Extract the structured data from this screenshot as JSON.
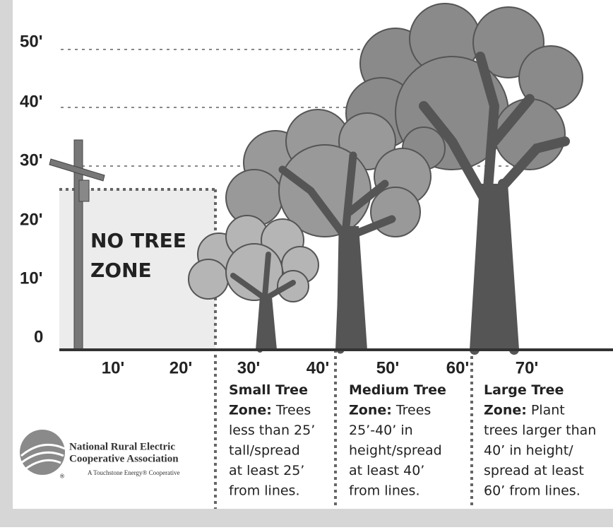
{
  "y_axis_labels": [
    "50'",
    "40'",
    "30'",
    "20'",
    "10'",
    "0"
  ],
  "x_axis_labels": [
    "10'",
    "20'",
    "30'",
    "40'",
    "50'",
    "60'",
    "70'"
  ],
  "no_tree_zone": [
    "NO TREE",
    "ZONE"
  ],
  "zones": [
    {
      "lines": [
        {
          "bold": "Small Tree"
        },
        {
          "bold": "Zone:",
          "text": "Trees"
        },
        {
          "text": "less than 25’"
        },
        {
          "text": "tall/spread"
        },
        {
          "text": "at least 25’"
        },
        {
          "text": "from lines."
        }
      ]
    },
    {
      "lines": [
        {
          "bold": "Medium Tree"
        },
        {
          "bold": "Zone:",
          "text": "Trees"
        },
        {
          "text": "25’-40’ in"
        },
        {
          "text": "height/spread"
        },
        {
          "text": "at least 40’"
        },
        {
          "text": "from lines."
        }
      ]
    },
    {
      "lines": [
        {
          "bold": "Large Tree"
        },
        {
          "bold": "Zone:",
          "text": "Plant"
        },
        {
          "text": "trees larger than"
        },
        {
          "text": "40’ in height/"
        },
        {
          "text": "spread at least"
        },
        {
          "text": "60’ from lines."
        }
      ]
    }
  ],
  "logo": {
    "name_line1": "National Rural Electric",
    "name_line2": "Cooperative Association",
    "tagline": "A Touchstone Energy® Cooperative",
    "registered": "®"
  }
}
